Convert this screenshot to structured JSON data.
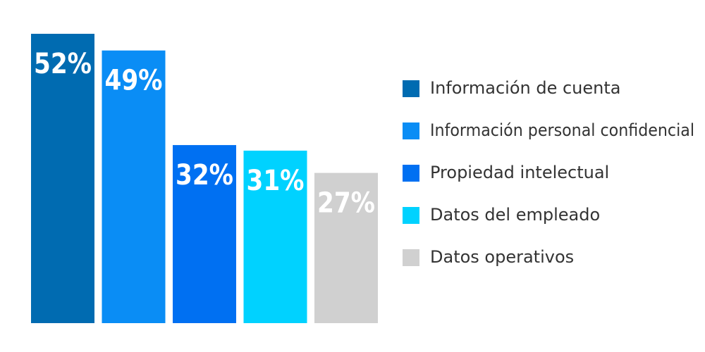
{
  "chart_data": {
    "type": "bar",
    "categories": [
      "Información de cuenta",
      "Información personal confidencial",
      "Propiedad intelectual",
      "Datos del empleado",
      "Datos operativos"
    ],
    "values": [
      52,
      49,
      32,
      31,
      27
    ],
    "value_labels": [
      "52%",
      "49%",
      "32%",
      "31%",
      "27%"
    ],
    "colors": [
      "#006bb1",
      "#0a8df5",
      "#0070f2",
      "#00d2ff",
      "#d0d0d0"
    ],
    "legend": "right"
  }
}
